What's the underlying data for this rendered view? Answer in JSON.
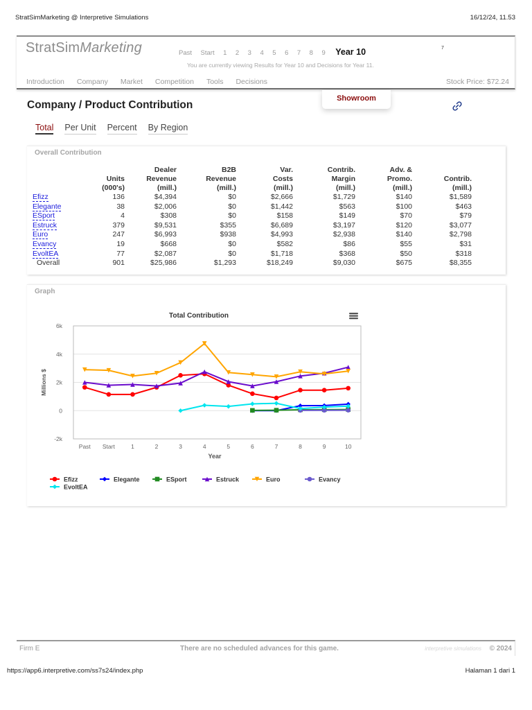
{
  "print_header": {
    "title": "StratSimMarketing @ Interpretive Simulations",
    "datetime": "16/12/24, 11.53"
  },
  "print_footer": {
    "url": "https://app6.interpretive.com/ss7s24/index.php",
    "page": "Halaman 1 dari 1"
  },
  "header": {
    "logo_plain": "StratSim",
    "logo_italic": "Marketing",
    "years": [
      "Past",
      "Start",
      "1",
      "2",
      "3",
      "4",
      "5",
      "6",
      "7",
      "8",
      "9"
    ],
    "current_year": "Year 10",
    "viewing_text": "You are currently viewing Results for Year 10 and Decisions for Year 11.",
    "tiny_badge": "7",
    "nav": [
      "Introduction",
      "Company",
      "Market",
      "Competition",
      "Tools",
      "Decisions"
    ],
    "stock_price": "Stock Price: $72.24"
  },
  "showroom": {
    "label": "Showroom"
  },
  "page": {
    "title": "Company / Product Contribution",
    "tabs": [
      {
        "label": "Total",
        "active": true
      },
      {
        "label": "Per Unit",
        "active": false
      },
      {
        "label": "Percent",
        "active": false
      },
      {
        "label": "By Region",
        "active": false
      }
    ]
  },
  "contribution": {
    "panel_title": "Overall Contribution",
    "headers": [
      [
        "",
        "",
        ""
      ],
      [
        "",
        "Units",
        "(000's)"
      ],
      [
        "Dealer",
        "Revenue",
        "(mill.)"
      ],
      [
        "B2B",
        "Revenue",
        "(mill.)"
      ],
      [
        "Var.",
        "Costs",
        "(mill.)"
      ],
      [
        "Contrib.",
        "Margin",
        "(mill.)"
      ],
      [
        "Adv. &",
        "Promo.",
        "(mill.)"
      ],
      [
        "",
        "Contrib.",
        "(mill.)"
      ]
    ],
    "rows": [
      [
        "Efizz",
        "136",
        "$4,394",
        "$0",
        "$2,666",
        "$1,729",
        "$140",
        "$1,589"
      ],
      [
        "Elegante",
        "38",
        "$2,006",
        "$0",
        "$1,442",
        "$563",
        "$100",
        "$463"
      ],
      [
        "ESport",
        "4",
        "$308",
        "$0",
        "$158",
        "$149",
        "$70",
        "$79"
      ],
      [
        "Estruck",
        "379",
        "$9,531",
        "$355",
        "$6,689",
        "$3,197",
        "$120",
        "$3,077"
      ],
      [
        "Euro",
        "247",
        "$6,993",
        "$938",
        "$4,993",
        "$2,938",
        "$140",
        "$2,798"
      ],
      [
        "Evancy",
        "19",
        "$668",
        "$0",
        "$582",
        "$86",
        "$55",
        "$31"
      ],
      [
        "EvoltEA",
        "77",
        "$2,087",
        "$0",
        "$1,718",
        "$368",
        "$50",
        "$318"
      ]
    ],
    "overall": [
      "Overall",
      "901",
      "$25,986",
      "$1,293",
      "$18,249",
      "$9,030",
      "$675",
      "$8,355"
    ]
  },
  "graph": {
    "panel_title": "Graph",
    "menu_icon": "hamburger-menu-icon"
  },
  "chart_data": {
    "type": "line",
    "title": "Total Contribution",
    "xlabel": "Year",
    "ylabel": "Millions $",
    "ylim": [
      -2000,
      6000
    ],
    "yticks": [
      "-2k",
      "0",
      "2k",
      "4k",
      "6k"
    ],
    "ytick_values": [
      -2000,
      0,
      2000,
      4000,
      6000
    ],
    "grid": true,
    "legend_position": "bottom",
    "categories": [
      "Past",
      "Start",
      "1",
      "2",
      "3",
      "4",
      "5",
      "6",
      "7",
      "8",
      "9",
      "10"
    ],
    "series": [
      {
        "name": "Efizz",
        "color": "#ff0000",
        "marker": "circle",
        "values": [
          1650,
          1150,
          1150,
          1650,
          2500,
          2600,
          1800,
          1200,
          900,
          1450,
          1450,
          1589
        ]
      },
      {
        "name": "Elegante",
        "color": "#0000ff",
        "marker": "diamond",
        "values": [
          null,
          null,
          null,
          null,
          null,
          null,
          null,
          0,
          0,
          350,
          360,
          463
        ]
      },
      {
        "name": "ESport",
        "color": "#228b22",
        "marker": "square",
        "values": [
          null,
          null,
          null,
          null,
          null,
          null,
          null,
          20,
          30,
          60,
          70,
          79
        ]
      },
      {
        "name": "Estruck",
        "color": "#6a0dcc",
        "marker": "triangle",
        "values": [
          2000,
          1800,
          1850,
          1750,
          1950,
          2750,
          2050,
          1750,
          2050,
          2450,
          2650,
          3077
        ]
      },
      {
        "name": "Euro",
        "color": "#ffa500",
        "marker": "triangle-down",
        "values": [
          2900,
          2850,
          2450,
          2650,
          3400,
          4750,
          2700,
          2550,
          2400,
          2750,
          2600,
          2798
        ]
      },
      {
        "name": "Evancy",
        "color": "#6a5acd",
        "marker": "circle",
        "values": [
          null,
          null,
          null,
          null,
          null,
          null,
          null,
          null,
          null,
          20,
          25,
          31
        ]
      },
      {
        "name": "EvoltEA",
        "color": "#00e5ee",
        "marker": "diamond",
        "values": [
          null,
          null,
          null,
          null,
          0,
          380,
          300,
          480,
          520,
          150,
          250,
          318
        ]
      }
    ]
  },
  "footer": {
    "firm": "Firm E",
    "message": "There are no scheduled advances for this game.",
    "brand": "interpretive simulations",
    "copyright": "© 2024"
  }
}
